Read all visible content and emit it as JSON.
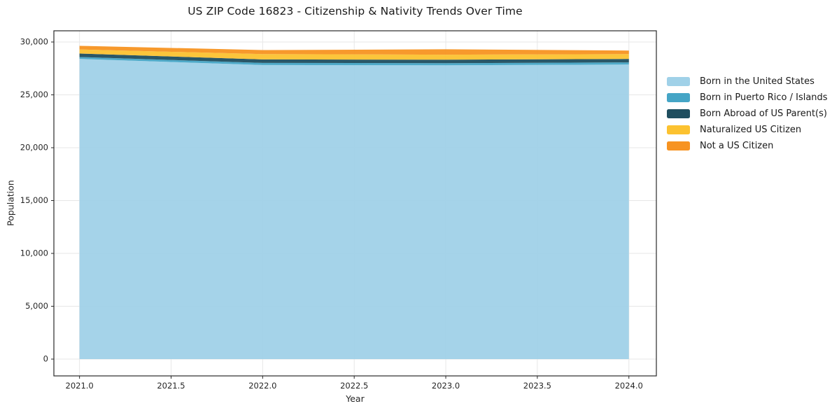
{
  "chart_data": {
    "type": "area",
    "stacked": true,
    "title": "US ZIP Code 16823 - Citizenship & Nativity Trends Over Time",
    "xlabel": "Year",
    "ylabel": "Population",
    "x": [
      2021,
      2022,
      2023,
      2024
    ],
    "series": [
      {
        "name": "Born in the United States",
        "color": "#a0d1e8",
        "values": [
          28400,
          27820,
          27800,
          27870
        ]
      },
      {
        "name": "Born in Puerto Rico / Islands",
        "color": "#45a5c6",
        "values": [
          180,
          200,
          200,
          200
        ]
      },
      {
        "name": "Born Abroad of US Parent(s)",
        "color": "#1f4e5f",
        "values": [
          330,
          330,
          330,
          330
        ]
      },
      {
        "name": "Naturalized US Citizen",
        "color": "#fcc230",
        "values": [
          385,
          510,
          470,
          460
        ]
      },
      {
        "name": "Not a US Citizen",
        "color": "#f79321",
        "values": [
          345,
          380,
          510,
          330
        ]
      }
    ],
    "totals": [
      29640,
      29240,
      29310,
      29190
    ],
    "xlim": [
      2020.86,
      2024.15
    ],
    "ylim": [
      -1590,
      31060
    ],
    "x_ticks": {
      "values": [
        2021.0,
        2021.5,
        2022.0,
        2022.5,
        2023.0,
        2023.5,
        2024.0
      ],
      "labels": [
        "2021.0",
        "2021.5",
        "2022.0",
        "2022.5",
        "2023.0",
        "2023.5",
        "2024.0"
      ]
    },
    "y_ticks": {
      "values": [
        0,
        5000,
        10000,
        15000,
        20000,
        25000,
        30000
      ],
      "labels": [
        "0",
        "5,000",
        "10,000",
        "15,000",
        "20,000",
        "25,000",
        "30,000"
      ]
    },
    "grid": true,
    "legend_position": "outside-right",
    "legend_entries": [
      "Born in the United States",
      "Born in Puerto Rico / Islands",
      "Born Abroad of US Parent(s)",
      "Naturalized US Citizen",
      "Not a US Citizen"
    ]
  },
  "style_colors": {
    "grid": "#e7e7e7",
    "spine": "#2a2a2a",
    "tick": "#2a2a2a",
    "background": "#ffffff"
  }
}
